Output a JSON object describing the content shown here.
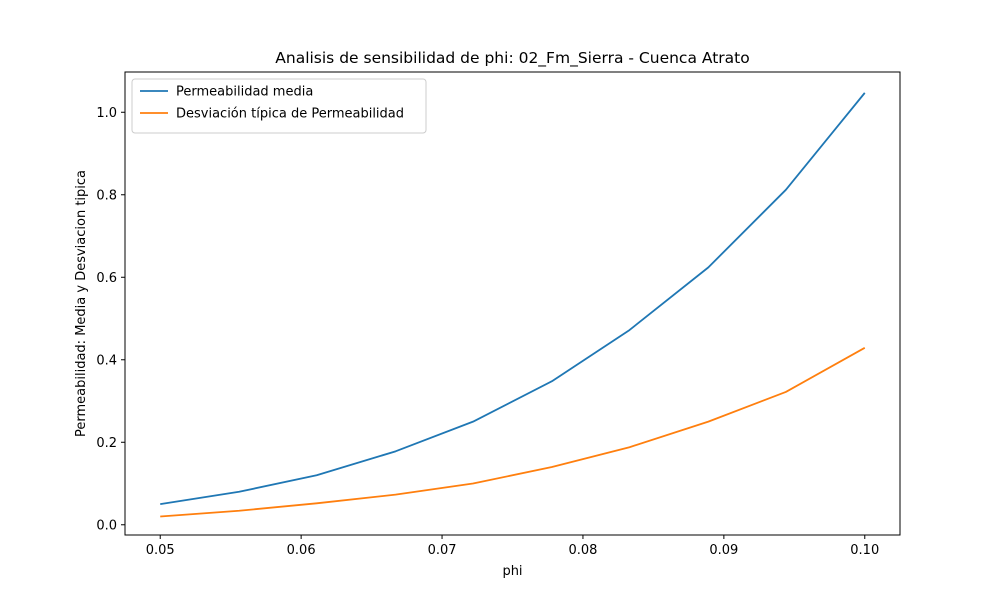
{
  "chart_data": {
    "type": "line",
    "title": "Analisis de sensibilidad de phi: 02_Fm_Sierra - Cuenca Atrato",
    "xlabel": "phi",
    "ylabel": "Permeabilidad: Media y Desviacion tipica",
    "xlim": [
      0.0475,
      0.1025
    ],
    "ylim": [
      -0.0248,
      1.0976
    ],
    "xticks": [
      0.05,
      0.06,
      0.07,
      0.08,
      0.09,
      0.1
    ],
    "xtick_labels": [
      "0.05",
      "0.06",
      "0.07",
      "0.08",
      "0.09",
      "0.10"
    ],
    "yticks": [
      0.0,
      0.2,
      0.4,
      0.6,
      0.8,
      1.0
    ],
    "ytick_labels": [
      "0.0",
      "0.2",
      "0.4",
      "0.6",
      "0.8",
      "1.0"
    ],
    "grid": false,
    "legend_position": "top-left",
    "x": [
      0.05,
      0.0556,
      0.0611,
      0.0667,
      0.0722,
      0.0778,
      0.0833,
      0.0889,
      0.0944,
      0.1
    ],
    "series": [
      {
        "name": "Permeabilidad media",
        "color": "#1f77b4",
        "values": [
          0.05,
          0.08,
          0.12,
          0.178,
          0.25,
          0.348,
          0.472,
          0.624,
          0.812,
          1.047
        ]
      },
      {
        "name": "Desviación típica de Permeabilidad",
        "color": "#ff7f0e",
        "values": [
          0.02,
          0.034,
          0.052,
          0.073,
          0.1,
          0.14,
          0.188,
          0.25,
          0.322,
          0.429
        ]
      }
    ]
  }
}
